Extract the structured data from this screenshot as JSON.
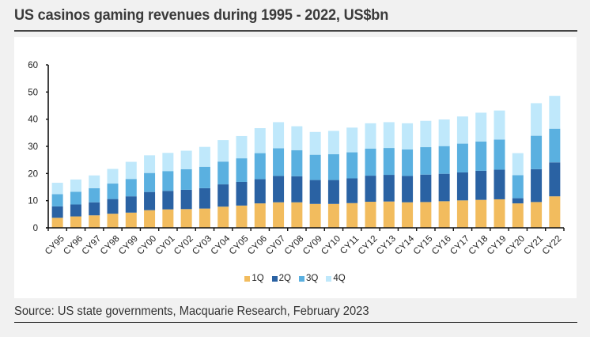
{
  "header": {
    "title": "US casinos gaming revenues during 1995 - 2022, US$bn"
  },
  "footer": {
    "source": "Source: US state governments, Macquarie Research, February 2023"
  },
  "colors": {
    "1Q": "#f2bc5e",
    "2Q": "#2a62a3",
    "3Q": "#5ab0e0",
    "4Q": "#bfe8fb",
    "axis": "#111111"
  },
  "chart_data": {
    "type": "bar",
    "stacked": true,
    "cumulative_readout_note": "values are per-quarter contributions; stacked totals shown",
    "title": "US casinos gaming revenues during 1995 - 2022, US$bn",
    "xlabel": "",
    "ylabel": "",
    "ylim": [
      0,
      60
    ],
    "yticks": [
      0,
      10,
      20,
      30,
      40,
      50,
      60
    ],
    "grid": false,
    "legend_position": "bottom",
    "categories": [
      "CY95",
      "CY96",
      "CY97",
      "CY98",
      "CY99",
      "CY00",
      "CY01",
      "CY02",
      "CY03",
      "CY04",
      "CY05",
      "CY06",
      "CY07",
      "CY08",
      "CY09",
      "CY10",
      "CY11",
      "CY12",
      "CY13",
      "CY14",
      "CY15",
      "CY16",
      "CY17",
      "CY18",
      "CY19",
      "CY20",
      "CY21",
      "CY22"
    ],
    "series": [
      {
        "name": "1Q",
        "values": [
          3.7,
          4.2,
          4.6,
          5.2,
          5.6,
          6.5,
          6.8,
          6.9,
          7.1,
          7.8,
          8.2,
          9.0,
          9.4,
          9.4,
          8.8,
          8.8,
          9.1,
          9.6,
          9.7,
          9.4,
          9.5,
          9.8,
          10.1,
          10.3,
          10.5,
          9.0,
          9.5,
          11.6
        ]
      },
      {
        "name": "2Q",
        "values": [
          4.2,
          4.4,
          4.8,
          5.4,
          6.0,
          6.7,
          6.8,
          7.1,
          7.5,
          8.2,
          8.7,
          8.9,
          9.7,
          9.6,
          8.8,
          8.8,
          9.1,
          9.6,
          9.8,
          9.7,
          10.1,
          10.1,
          10.3,
          10.7,
          10.9,
          1.9,
          12.1,
          12.5
        ]
      },
      {
        "name": "3Q",
        "values": [
          4.5,
          4.7,
          5.2,
          5.7,
          6.4,
          7.0,
          7.3,
          7.6,
          7.9,
          8.4,
          8.7,
          9.6,
          10.2,
          9.6,
          9.3,
          9.5,
          9.6,
          10.0,
          9.9,
          9.8,
          10.1,
          10.2,
          10.6,
          10.8,
          11.1,
          8.5,
          12.3,
          12.4
        ]
      },
      {
        "name": "4Q",
        "values": [
          4.2,
          4.5,
          4.7,
          5.4,
          6.3,
          6.5,
          6.7,
          6.8,
          7.3,
          7.9,
          8.2,
          9.2,
          9.6,
          8.8,
          8.4,
          8.6,
          9.1,
          9.3,
          9.5,
          9.6,
          9.7,
          9.8,
          10.0,
          10.6,
          10.7,
          8.1,
          12.0,
          12.1
        ]
      }
    ],
    "totals": [
      16.6,
      17.8,
      19.3,
      21.7,
      24.3,
      26.7,
      27.6,
      28.4,
      29.8,
      32.3,
      33.8,
      36.7,
      38.9,
      37.4,
      35.3,
      35.7,
      36.9,
      38.5,
      38.9,
      38.5,
      39.4,
      39.9,
      41.0,
      42.4,
      43.2,
      27.5,
      45.9,
      48.6
    ]
  },
  "legend": [
    {
      "label": "1Q",
      "color": "#f2bc5e"
    },
    {
      "label": "2Q",
      "color": "#2a62a3"
    },
    {
      "label": "3Q",
      "color": "#5ab0e0"
    },
    {
      "label": "4Q",
      "color": "#bfe8fb"
    }
  ]
}
